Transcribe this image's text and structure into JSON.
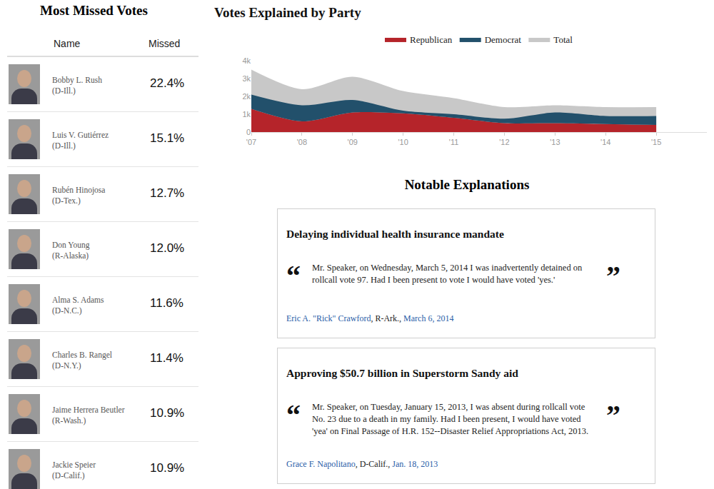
{
  "left_panel": {
    "title": "Most Missed Votes",
    "columns": [
      "Name",
      "Missed"
    ],
    "rows": [
      {
        "name": "Bobby L. Rush",
        "party": "(D-Ill.)",
        "missed": "22.4%"
      },
      {
        "name": "Luis V. Gutiérrez",
        "party": "(D-Ill.)",
        "missed": "15.1%"
      },
      {
        "name": "Rubén Hinojosa",
        "party": "(D-Tex.)",
        "missed": "12.7%"
      },
      {
        "name": "Don Young",
        "party": "(R-Alaska)",
        "missed": "12.0%"
      },
      {
        "name": "Alma S. Adams",
        "party": "(D-N.C.)",
        "missed": "11.6%"
      },
      {
        "name": "Charles B. Rangel",
        "party": "(D-N.Y.)",
        "missed": "11.4%"
      },
      {
        "name": "Jaime Herrera Beutler",
        "party": "(R-Wash.)",
        "missed": "10.9%"
      },
      {
        "name": "Jackie Speier",
        "party": "(D-Calif.)",
        "missed": "10.9%"
      }
    ]
  },
  "chart_data": {
    "type": "area",
    "title": "Votes Explained by Party",
    "x": [
      2007,
      2008,
      2009,
      2010,
      2011,
      2012,
      2013,
      2014,
      2015
    ],
    "xlim": [
      2007,
      2016
    ],
    "xticks": [
      {
        "value": 2007,
        "label": "'07"
      },
      {
        "value": 2008,
        "label": "'08"
      },
      {
        "value": 2009,
        "label": "'09"
      },
      {
        "value": 2010,
        "label": "'10"
      },
      {
        "value": 2011,
        "label": "'11"
      },
      {
        "value": 2012,
        "label": "'12"
      },
      {
        "value": 2013,
        "label": "'13"
      },
      {
        "value": 2014,
        "label": "'14"
      },
      {
        "value": 2015,
        "label": "'15"
      }
    ],
    "ylim": [
      0,
      4000
    ],
    "yticks": [
      0,
      {
        "value": 1000,
        "label": "1k"
      },
      {
        "value": 2000,
        "label": "2k"
      },
      {
        "value": 3000,
        "label": "3k"
      },
      {
        "value": 4000,
        "label": "4k"
      }
    ],
    "grid": false,
    "legend": "top",
    "series": [
      {
        "name": "Republican",
        "color": "#b5242a",
        "stacked": true,
        "values": [
          1300,
          600,
          1100,
          1050,
          800,
          500,
          500,
          450,
          400
        ]
      },
      {
        "name": "Democrat",
        "color": "#22506b",
        "stacked": true,
        "values": [
          800,
          900,
          700,
          150,
          200,
          250,
          600,
          450,
          500
        ]
      },
      {
        "name": "Total",
        "color": "#c8c8c8",
        "stacked": false,
        "values": [
          3500,
          2400,
          3100,
          2300,
          1900,
          1400,
          1500,
          1400,
          1400
        ]
      }
    ]
  },
  "explanations": {
    "title": "Notable Explanations",
    "items": [
      {
        "title": "Delaying individual health insurance mandate",
        "open_quote": "“",
        "close_quote": "”",
        "quote": "Mr. Speaker, on Wednesday, March 5, 2014 I was inadvertently detained on rollcall vote 97. Had I been present to vote I would have voted 'yes.'",
        "author": "Eric A. \"Rick\" Crawford",
        "party": ", R-Ark., ",
        "date": "March 6, 2014"
      },
      {
        "title": "Approving $50.7 billion in Superstorm Sandy aid",
        "open_quote": "“",
        "close_quote": "”",
        "quote": "Mr. Speaker, on Tuesday, January 15, 2013, I was absent during rollcall vote No. 23 due to a death in my family. Had I been present, I would have voted 'yea' on Final Passage of H.R. 152--Disaster Relief Appropriations Act, 2013.",
        "author": "Grace F. Napolitano",
        "party": ", D-Calif., ",
        "date": "Jan. 18, 2013"
      }
    ]
  }
}
